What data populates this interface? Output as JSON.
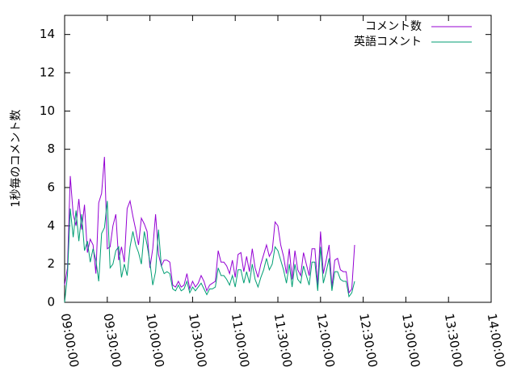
{
  "chart_data": {
    "type": "line",
    "ylabel": "1秒毎のコメント数",
    "xlabel": "",
    "xlim": [
      "09:00:00",
      "14:00:00"
    ],
    "ylim": [
      0,
      15
    ],
    "x_ticks": [
      "09:00:00",
      "09:30:00",
      "10:00:00",
      "10:30:00",
      "11:00:00",
      "11:30:00",
      "12:00:00",
      "12:30:00",
      "13:00:00",
      "13:30:00",
      "14:00:00"
    ],
    "y_ticks": [
      "0",
      "2",
      "4",
      "6",
      "8",
      "10",
      "12",
      "14"
    ],
    "grid": false,
    "legend_position": "top-right",
    "x_start": "09:00:00",
    "x_interval": "00:02:00",
    "series": [
      {
        "name": "コメント数",
        "color": "#9400d3",
        "values": [
          0.9,
          1.8,
          6.6,
          4.6,
          4.0,
          5.4,
          3.8,
          5.1,
          2.6,
          3.3,
          3.0,
          1.5,
          5.2,
          5.7,
          7.6,
          2.8,
          2.9,
          4.0,
          4.6,
          2.2,
          2.9,
          2.1,
          4.9,
          5.3,
          4.5,
          3.8,
          3.0,
          4.4,
          4.1,
          3.7,
          1.8,
          2.8,
          4.6,
          2.5,
          1.9,
          2.2,
          2.2,
          2.1,
          0.9,
          0.8,
          1.1,
          0.8,
          0.9,
          1.5,
          0.7,
          1.1,
          0.8,
          1.0,
          1.4,
          1.1,
          0.6,
          0.9,
          1.0,
          1.1,
          2.7,
          2.1,
          2.1,
          1.9,
          1.5,
          2.2,
          1.3,
          2.5,
          2.6,
          1.6,
          2.4,
          1.6,
          2.8,
          1.8,
          1.3,
          2.0,
          2.5,
          3.0,
          2.4,
          2.7,
          4.2,
          4.0,
          3.0,
          2.4,
          1.5,
          2.8,
          1.2,
          2.7,
          1.7,
          1.4,
          2.6,
          2.0,
          1.4,
          2.8,
          2.8,
          0.9,
          3.7,
          1.5,
          2.2,
          3.0,
          0.8,
          2.2,
          2.3,
          1.7,
          1.6,
          1.6,
          0.5,
          0.7,
          3.0
        ]
      },
      {
        "name": "英語コメント",
        "color": "#009e73",
        "values": [
          0.0,
          1.4,
          4.9,
          3.4,
          4.8,
          3.2,
          4.6,
          2.7,
          3.2,
          2.1,
          2.8,
          2.2,
          1.1,
          3.6,
          3.9,
          5.3,
          1.8,
          2.0,
          2.7,
          2.9,
          1.3,
          2.0,
          1.4,
          2.9,
          3.7,
          3.0,
          2.6,
          2.0,
          3.7,
          3.0,
          2.1,
          0.9,
          1.6,
          3.8,
          1.9,
          1.5,
          1.6,
          1.5,
          0.7,
          0.6,
          0.9,
          0.6,
          0.7,
          1.1,
          0.5,
          0.8,
          0.6,
          0.8,
          1.0,
          0.7,
          0.4,
          0.7,
          0.7,
          0.8,
          1.8,
          1.4,
          1.4,
          1.2,
          0.9,
          1.4,
          0.8,
          1.7,
          1.7,
          1.0,
          1.6,
          1.0,
          2.0,
          1.2,
          0.8,
          1.3,
          1.7,
          2.3,
          1.7,
          2.0,
          2.9,
          2.7,
          2.2,
          1.7,
          1.0,
          2.0,
          0.8,
          2.0,
          1.2,
          1.0,
          1.9,
          1.4,
          0.9,
          2.1,
          2.1,
          0.6,
          2.9,
          1.0,
          1.6,
          2.3,
          0.6,
          1.6,
          1.6,
          1.2,
          1.1,
          1.1,
          0.3,
          0.5,
          1.1
        ]
      }
    ]
  }
}
